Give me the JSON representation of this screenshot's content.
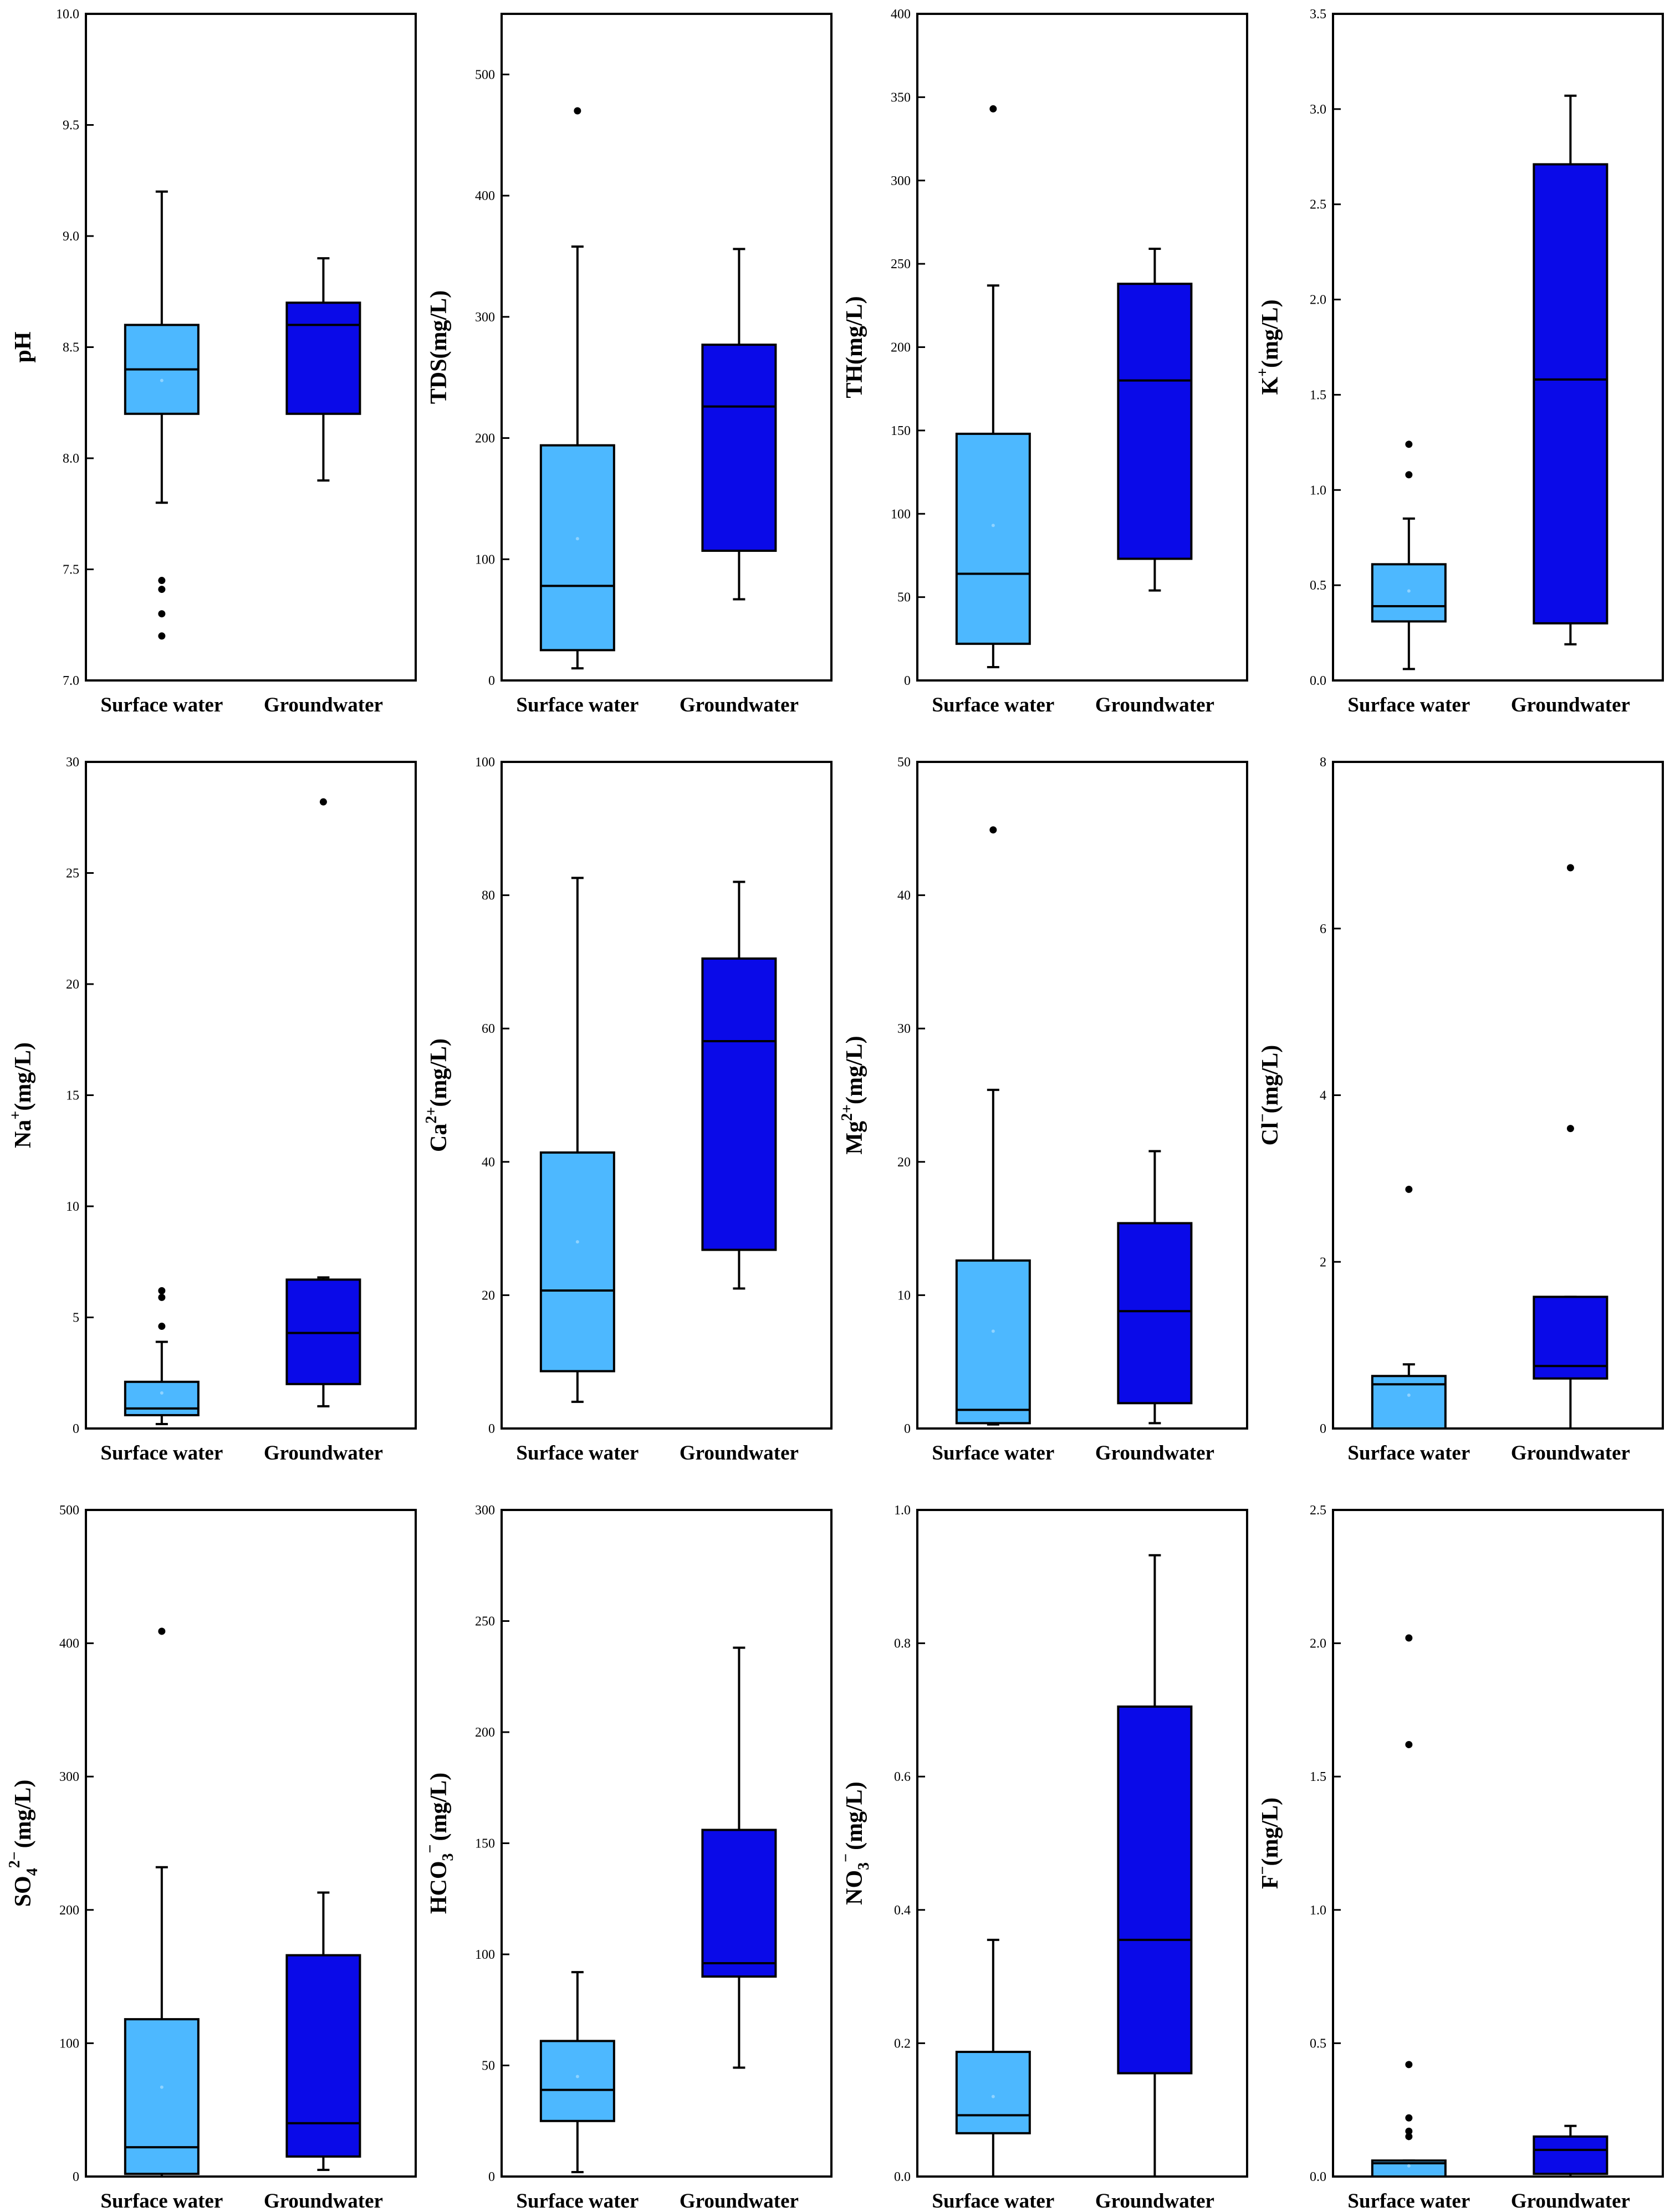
{
  "figure": {
    "colors": {
      "surface_water": "#4db8ff",
      "groundwater": "#0a0ae8",
      "line": "#000000"
    }
  },
  "chart_data": [
    {
      "type": "box",
      "ylabel": {
        "main": "pH",
        "sup": "",
        "sub": "",
        "suffix": ""
      },
      "ylim": [
        7.0,
        10.0
      ],
      "yticks": [
        "7.0",
        "7.5",
        "8.0",
        "8.5",
        "9.0",
        "9.5",
        "10.0"
      ],
      "categories": [
        "Surface water",
        "Groundwater"
      ],
      "boxes": [
        {
          "name": "Surface water",
          "whisker_low": 7.8,
          "q1": 8.2,
          "median": 8.4,
          "q3": 8.6,
          "whisker_high": 9.2,
          "mean": 8.35,
          "outliers": [
            7.45,
            7.41,
            7.3,
            7.2
          ]
        },
        {
          "name": "Groundwater",
          "whisker_low": 7.9,
          "q1": 8.2,
          "median": 8.6,
          "q3": 8.7,
          "whisker_high": 8.9,
          "outliers": []
        }
      ]
    },
    {
      "type": "box",
      "ylabel": {
        "main": "TDS(mg/L)",
        "sup": "",
        "sub": "",
        "suffix": ""
      },
      "ylim": [
        0,
        550
      ],
      "yticks": [
        "0",
        "100",
        "200",
        "300",
        "400",
        "500"
      ],
      "categories": [
        "Surface water",
        "Groundwater"
      ],
      "boxes": [
        {
          "name": "Surface water",
          "whisker_low": 10,
          "q1": 25,
          "median": 78,
          "q3": 194,
          "whisker_high": 358,
          "mean": 117,
          "outliers": [
            470
          ]
        },
        {
          "name": "Groundwater",
          "whisker_low": 67,
          "q1": 107,
          "median": 226,
          "q3": 277,
          "whisker_high": 356,
          "outliers": []
        }
      ]
    },
    {
      "type": "box",
      "ylabel": {
        "main": "TH(mg/L)",
        "sup": "",
        "sub": "",
        "suffix": ""
      },
      "ylim": [
        0,
        400
      ],
      "yticks": [
        "0",
        "50",
        "100",
        "150",
        "200",
        "250",
        "300",
        "350",
        "400"
      ],
      "categories": [
        "Surface water",
        "Groundwater"
      ],
      "boxes": [
        {
          "name": "Surface water",
          "whisker_low": 8,
          "q1": 22,
          "median": 64,
          "q3": 148,
          "whisker_high": 237,
          "mean": 93,
          "outliers": [
            343
          ]
        },
        {
          "name": "Groundwater",
          "whisker_low": 54,
          "q1": 73,
          "median": 180,
          "q3": 238,
          "whisker_high": 259,
          "outliers": []
        }
      ]
    },
    {
      "type": "box",
      "ylabel": {
        "main": "K",
        "sup": "+",
        "sub": "",
        "suffix": "(mg/L)"
      },
      "ylim": [
        0,
        3.5
      ],
      "yticks": [
        "0.0",
        "0.5",
        "1.0",
        "1.5",
        "2.0",
        "2.5",
        "3.0",
        "3.5"
      ],
      "categories": [
        "Surface water",
        "Groundwater"
      ],
      "boxes": [
        {
          "name": "Surface water",
          "whisker_low": 0.06,
          "q1": 0.31,
          "median": 0.39,
          "q3": 0.61,
          "whisker_high": 0.85,
          "mean": 0.47,
          "outliers": [
            1.08,
            1.24
          ]
        },
        {
          "name": "Groundwater",
          "whisker_low": 0.19,
          "q1": 0.3,
          "median": 1.58,
          "q3": 2.71,
          "whisker_high": 3.07,
          "outliers": []
        }
      ]
    },
    {
      "type": "box",
      "ylabel": {
        "main": "Na",
        "sup": "+",
        "sub": "",
        "suffix": "(mg/L)"
      },
      "ylim": [
        0,
        30
      ],
      "yticks": [
        "0",
        "5",
        "10",
        "15",
        "20",
        "25",
        "30"
      ],
      "categories": [
        "Surface water",
        "Groundwater"
      ],
      "boxes": [
        {
          "name": "Surface water",
          "whisker_low": 0.2,
          "q1": 0.6,
          "median": 0.9,
          "q3": 2.1,
          "whisker_high": 3.9,
          "mean": 1.6,
          "outliers": [
            4.6,
            5.9,
            6.2
          ]
        },
        {
          "name": "Groundwater",
          "whisker_low": 1.0,
          "q1": 2.0,
          "median": 4.3,
          "q3": 6.7,
          "whisker_high": 6.8,
          "outliers": [
            28.2
          ]
        }
      ]
    },
    {
      "type": "box",
      "ylabel": {
        "main": "Ca",
        "sup": "2+",
        "sub": "",
        "suffix": "(mg/L)"
      },
      "ylim": [
        0,
        100
      ],
      "yticks": [
        "0",
        "20",
        "40",
        "60",
        "80",
        "100"
      ],
      "categories": [
        "Surface water",
        "Groundwater"
      ],
      "boxes": [
        {
          "name": "Surface water",
          "whisker_low": 4,
          "q1": 8.6,
          "median": 20.7,
          "q3": 41.4,
          "whisker_high": 82.6,
          "mean": 28,
          "outliers": []
        },
        {
          "name": "Groundwater",
          "whisker_low": 21,
          "q1": 26.8,
          "median": 58.1,
          "q3": 70.5,
          "whisker_high": 82,
          "outliers": []
        }
      ]
    },
    {
      "type": "box",
      "ylabel": {
        "main": "Mg",
        "sup": "2+",
        "sub": "",
        "suffix": "(mg/L)"
      },
      "ylim": [
        0,
        50
      ],
      "yticks": [
        "0",
        "10",
        "20",
        "30",
        "40",
        "50"
      ],
      "categories": [
        "Surface water",
        "Groundwater"
      ],
      "boxes": [
        {
          "name": "Surface water",
          "whisker_low": 0.3,
          "q1": 0.4,
          "median": 1.4,
          "q3": 12.6,
          "whisker_high": 25.4,
          "mean": 7.3,
          "outliers": [
            44.9
          ]
        },
        {
          "name": "Groundwater",
          "whisker_low": 0.4,
          "q1": 1.9,
          "median": 8.8,
          "q3": 15.4,
          "whisker_high": 20.8,
          "outliers": []
        }
      ]
    },
    {
      "type": "box",
      "ylabel": {
        "main": "Cl",
        "sup": "−",
        "sub": "",
        "suffix": "(mg/L)"
      },
      "ylim": [
        0,
        8
      ],
      "yticks": [
        "0",
        "2",
        "4",
        "6",
        "8"
      ],
      "categories": [
        "Surface water",
        "Groundwater"
      ],
      "boxes": [
        {
          "name": "Surface water",
          "whisker_low": 0,
          "q1": 0,
          "median": 0.53,
          "q3": 0.63,
          "whisker_high": 0.77,
          "mean": 0.4,
          "outliers": [
            2.87
          ]
        },
        {
          "name": "Groundwater",
          "whisker_low": 0,
          "q1": 0.6,
          "median": 0.75,
          "q3": 1.58,
          "whisker_high": 1.58,
          "outliers": [
            3.6,
            6.73
          ]
        }
      ]
    },
    {
      "type": "box",
      "ylabel": {
        "main": "SO",
        "sup": "2−",
        "sub": "4",
        "suffix": "(mg/L)"
      },
      "ylim": [
        0,
        500
      ],
      "yticks": [
        "0",
        "100",
        "200",
        "300",
        "400",
        "500"
      ],
      "categories": [
        "Surface water",
        "Groundwater"
      ],
      "boxes": [
        {
          "name": "Surface water",
          "whisker_low": 0,
          "q1": 2,
          "median": 22,
          "q3": 118,
          "whisker_high": 232,
          "mean": 67,
          "outliers": [
            409
          ]
        },
        {
          "name": "Groundwater",
          "whisker_low": 5,
          "q1": 15,
          "median": 40,
          "q3": 166,
          "whisker_high": 213,
          "outliers": []
        }
      ]
    },
    {
      "type": "box",
      "ylabel": {
        "main": "HCO",
        "sup": "−",
        "sub": "3",
        "suffix": "(mg/L)"
      },
      "ylim": [
        0,
        300
      ],
      "yticks": [
        "0",
        "50",
        "100",
        "150",
        "200",
        "250",
        "300"
      ],
      "categories": [
        "Surface water",
        "Groundwater"
      ],
      "boxes": [
        {
          "name": "Surface water",
          "whisker_low": 2,
          "q1": 25,
          "median": 39,
          "q3": 61,
          "whisker_high": 92,
          "mean": 45,
          "outliers": []
        },
        {
          "name": "Groundwater",
          "whisker_low": 49,
          "q1": 90,
          "median": 96,
          "q3": 156,
          "whisker_high": 238,
          "outliers": []
        }
      ]
    },
    {
      "type": "box",
      "ylabel": {
        "main": "NO",
        "sup": "−",
        "sub": "3",
        "suffix": "(mg/L)"
      },
      "ylim": [
        0,
        1.0
      ],
      "yticks": [
        "0.0",
        "0.2",
        "0.4",
        "0.6",
        "0.8",
        "1.0"
      ],
      "categories": [
        "Surface water",
        "Groundwater"
      ],
      "boxes": [
        {
          "name": "Surface water",
          "whisker_low": 0,
          "q1": 0.065,
          "median": 0.092,
          "q3": 0.187,
          "whisker_high": 0.355,
          "mean": 0.12,
          "outliers": []
        },
        {
          "name": "Groundwater",
          "whisker_low": 0,
          "q1": 0.155,
          "median": 0.355,
          "q3": 0.705,
          "whisker_high": 0.932,
          "outliers": []
        }
      ]
    },
    {
      "type": "box",
      "ylabel": {
        "main": "F",
        "sup": "−",
        "sub": "",
        "suffix": "(mg/L)"
      },
      "ylim": [
        0,
        2.5
      ],
      "yticks": [
        "0.0",
        "0.5",
        "1.0",
        "1.5",
        "2.0",
        "2.5"
      ],
      "categories": [
        "Surface water",
        "Groundwater"
      ],
      "boxes": [
        {
          "name": "Surface water",
          "whisker_low": 0,
          "q1": 0,
          "median": 0.05,
          "q3": 0.06,
          "whisker_high": 0.06,
          "mean": 0.04,
          "outliers": [
            0.15,
            0.17,
            0.22,
            0.42,
            1.62,
            2.02
          ]
        },
        {
          "name": "Groundwater",
          "whisker_low": 0,
          "q1": 0.01,
          "median": 0.1,
          "q3": 0.15,
          "whisker_high": 0.19,
          "outliers": []
        }
      ]
    }
  ]
}
